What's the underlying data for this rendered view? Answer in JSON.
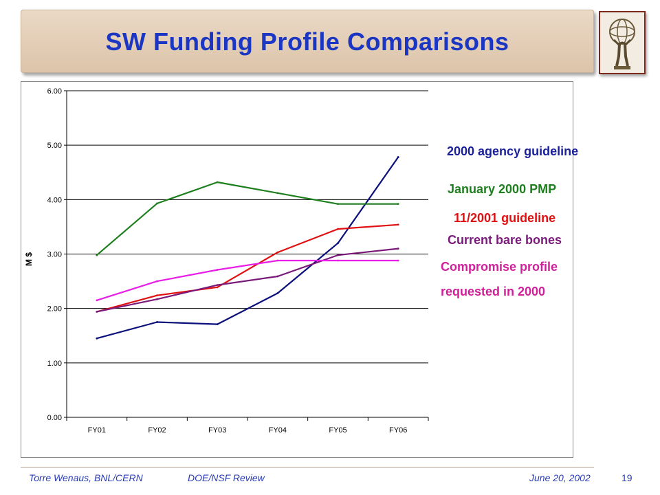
{
  "header": {
    "title": "SW Funding Profile Comparisons"
  },
  "logo": {
    "icon": "atlas-statue-icon"
  },
  "chart_data": {
    "type": "line",
    "categories": [
      "FY01",
      "FY02",
      "FY03",
      "FY04",
      "FY05",
      "FY06"
    ],
    "ylabel": "M $",
    "ylim": [
      0,
      6
    ],
    "yticks": [
      "0.00",
      "1.00",
      "2.00",
      "3.00",
      "4.00",
      "5.00",
      "6.00"
    ],
    "grid": "horizontal",
    "legend_position": "right",
    "series": [
      {
        "name": "2000 agency guideline",
        "color": "#0a0f7a",
        "values": [
          1.45,
          1.75,
          1.71,
          2.28,
          3.2,
          4.78
        ]
      },
      {
        "name": "January 2000 PMP",
        "color": "#1d7f1d",
        "values": [
          2.98,
          3.93,
          4.32,
          4.12,
          3.92,
          3.92
        ]
      },
      {
        "name": "11/2001 guideline",
        "color": "#e01010",
        "values": [
          1.94,
          2.24,
          2.39,
          3.03,
          3.46,
          3.54
        ]
      },
      {
        "name": "Current bare bones",
        "color": "#7a1a7a",
        "values": [
          1.94,
          2.17,
          2.43,
          2.59,
          2.98,
          3.1
        ]
      },
      {
        "name": "Compromise profile requested in 2000",
        "color": "#e81ee8",
        "values": [
          2.15,
          2.5,
          2.71,
          2.88,
          2.88,
          2.88
        ]
      }
    ]
  },
  "legend": {
    "items": [
      {
        "text": "2000 agency guideline",
        "color": "#1a1f9a"
      },
      {
        "text": "January 2000 PMP",
        "color": "#1d7f1d"
      },
      {
        "text": "11/2001 guideline",
        "color": "#e01010"
      },
      {
        "text": "Current bare bones",
        "color": "#7a1a7a"
      },
      {
        "text": "Compromise profile",
        "color": "#d0209a"
      },
      {
        "text": "requested in 2000",
        "color": "#d0209a"
      }
    ]
  },
  "footer": {
    "author": "Torre Wenaus, BNL/CERN",
    "event": "DOE/NSF Review",
    "date": "June 20, 2002",
    "page": "19"
  }
}
